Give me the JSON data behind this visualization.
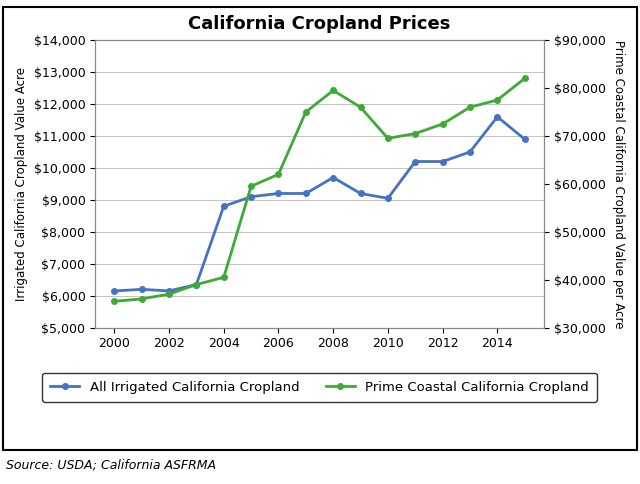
{
  "title": "California Cropland Prices",
  "ylabel_left": "Irrigated California Cropland Value Acre",
  "ylabel_right": "Prime Coastal California Cropland Value per Acre",
  "source": "Source: USDA; California ASFRMA",
  "blue_years": [
    2000,
    2001,
    2002,
    2003,
    2004,
    2005,
    2006,
    2007,
    2008,
    2009,
    2010,
    2011,
    2012,
    2013,
    2014,
    2015
  ],
  "green_years": [
    2000,
    2001,
    2002,
    2003,
    2004,
    2005,
    2006,
    2007,
    2008,
    2009,
    2010,
    2011,
    2012,
    2013,
    2014,
    2015
  ],
  "blue_values": [
    6150,
    6200,
    6150,
    6350,
    8800,
    9100,
    9200,
    9200,
    9700,
    9200,
    9050,
    10200,
    10200,
    10500,
    11600,
    10900
  ],
  "green_values": [
    35500,
    36000,
    37000,
    39000,
    40500,
    59500,
    62000,
    75000,
    79500,
    76000,
    69500,
    70500,
    72500,
    76000,
    77500,
    82000
  ],
  "ylim_left": [
    5000,
    14000
  ],
  "ylim_right": [
    30000,
    90000
  ],
  "yticks_left": [
    5000,
    6000,
    7000,
    8000,
    9000,
    10000,
    11000,
    12000,
    13000,
    14000
  ],
  "yticks_right": [
    30000,
    40000,
    50000,
    60000,
    70000,
    80000,
    90000
  ],
  "xticks": [
    2000,
    2002,
    2004,
    2006,
    2008,
    2010,
    2012,
    2014
  ],
  "xlim": [
    1999.3,
    2015.7
  ],
  "blue_color": "#4472C4",
  "green_color": "#3DAA35",
  "line_width": 2.0,
  "marker_size": 4,
  "legend_blue": "All Irrigated California Cropland",
  "legend_green": "Prime Coastal California Cropland",
  "background_color": "#FFFFFF",
  "grid_color": "#BBBBBB",
  "title_fontsize": 13,
  "axis_label_fontsize": 8.5,
  "tick_fontsize": 9,
  "source_fontsize": 9
}
